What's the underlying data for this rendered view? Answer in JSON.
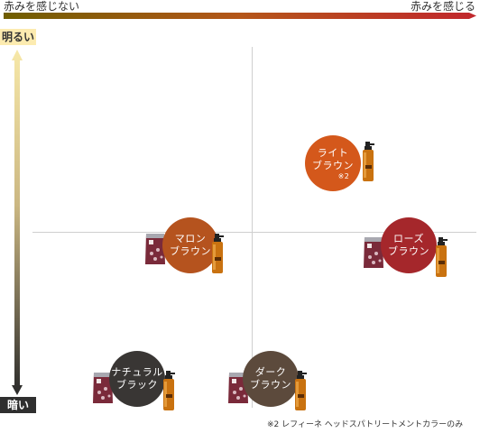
{
  "horizontal_axis": {
    "left_label": "赤みを感じない",
    "right_label": "赤みを感じる",
    "gradient_colors": [
      "#6f5e00",
      "#b45619",
      "#c1272d"
    ]
  },
  "vertical_axis": {
    "top_label": "明るい",
    "bottom_label": "暗い",
    "top_label_bg": "#fcebb0",
    "bottom_label_bg": "#2f2f2f",
    "gradient_colors": [
      "#f7e8a8",
      "#cbb782",
      "#2a2a2a"
    ]
  },
  "colors": [
    {
      "id": "light-brown",
      "line1": "ライト",
      "line2": "ブラウン",
      "note": "※2",
      "fill": "#d4581b",
      "products": "bottle"
    },
    {
      "id": "marron-brown",
      "line1": "マロン",
      "line2": "ブラウン",
      "note": "",
      "fill": "#b5531e",
      "products": "pouch-and-bottle"
    },
    {
      "id": "rose-brown",
      "line1": "ローズ",
      "line2": "ブラウン",
      "note": "",
      "fill": "#a5272b",
      "products": "pouch-and-bottle"
    },
    {
      "id": "natural-black",
      "line1": "ナチュラル",
      "line2": "ブラック",
      "note": "",
      "fill": "#393634",
      "products": "pouch-and-bottle"
    },
    {
      "id": "dark-brown",
      "line1": "ダーク",
      "line2": "ブラウン",
      "note": "",
      "fill": "#5c4a3c",
      "products": "pouch-and-bottle"
    }
  ],
  "footnote": "※2 レフィーネ ヘッドスパトリートメントカラーのみ"
}
